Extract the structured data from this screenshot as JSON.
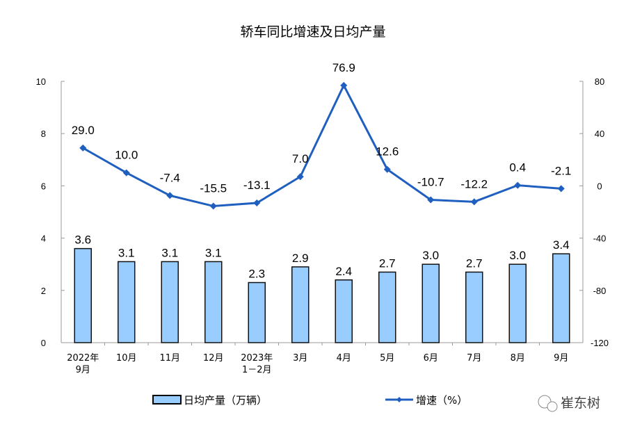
{
  "chart_data": {
    "type": "bar+line",
    "title": "轿车同比增速及日均产量",
    "categories": [
      "2022年\n9月",
      "10月",
      "11月",
      "12月",
      "2023年\n1－2月",
      "3月",
      "4月",
      "5月",
      "6月",
      "7月",
      "8月",
      "9月"
    ],
    "series": [
      {
        "name": "日均产量（万辆）",
        "type": "bar",
        "axis": "left",
        "values": [
          3.6,
          3.1,
          3.1,
          3.1,
          2.3,
          2.9,
          2.4,
          2.7,
          3.0,
          2.7,
          3.0,
          3.4
        ],
        "labels": [
          "3.6",
          "3.1",
          "3.1",
          "3.1",
          "2.3",
          "2.9",
          "2.4",
          "2.7",
          "3.0",
          "2.7",
          "3.0",
          "3.4"
        ],
        "color": "#99ccff"
      },
      {
        "name": "增速（%）",
        "type": "line",
        "axis": "right",
        "values": [
          29.0,
          10.0,
          -7.4,
          -15.5,
          -13.1,
          7.0,
          76.9,
          12.6,
          -10.7,
          -12.2,
          0.4,
          -2.1
        ],
        "labels": [
          "29.0",
          "10.0",
          "-7.4",
          "-15.5",
          "-13.1",
          "7.0",
          "76.9",
          "12.6",
          "-10.7",
          "-12.2",
          "0.4",
          "-2.1"
        ],
        "color": "#1f5fbf"
      }
    ],
    "left_axis": {
      "ylim": [
        0,
        10
      ],
      "ticks": [
        "0",
        "2",
        "4",
        "6",
        "8",
        "10"
      ]
    },
    "right_axis": {
      "ylim": [
        -120,
        80
      ],
      "ticks": [
        "-120",
        "-80",
        "-40",
        "0",
        "40",
        "80"
      ]
    },
    "legend": "bottom"
  },
  "watermark": "崔东树"
}
